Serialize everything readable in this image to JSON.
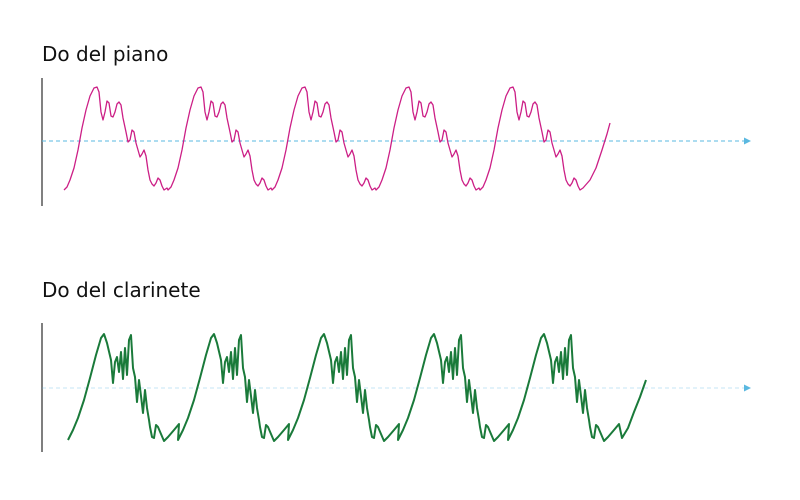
{
  "panels": [
    {
      "title": "Do del piano",
      "wave_color": "#cc1f86",
      "axis_color": "#5ab8e0",
      "axis_style": "dashed",
      "line_width": "thin"
    },
    {
      "title": "Do del clarinete",
      "wave_color": "#1a7a3a",
      "axis_color": "#5ab8e0",
      "axis_style": "faint-dashed",
      "line_width": "thick"
    }
  ],
  "wave_periods": 5
}
